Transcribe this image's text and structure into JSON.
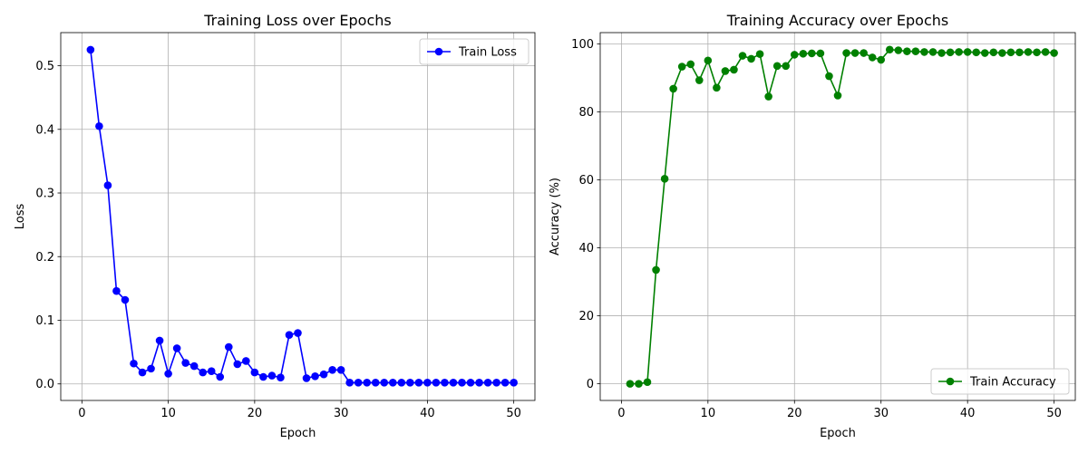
{
  "chart_data": [
    {
      "type": "line",
      "title": "Training Loss over Epochs",
      "xlabel": "Epoch",
      "ylabel": "Loss",
      "xlim": [
        -2.45,
        52.45
      ],
      "ylim": [
        -0.026,
        0.552
      ],
      "xticks": [
        0,
        10,
        20,
        30,
        40,
        50
      ],
      "yticks": [
        0.0,
        0.1,
        0.2,
        0.3,
        0.4,
        0.5
      ],
      "ytick_labels": [
        "0.0",
        "0.1",
        "0.2",
        "0.3",
        "0.4",
        "0.5"
      ],
      "grid": true,
      "legend_placement": "upper right",
      "series": [
        {
          "name": "Train Loss",
          "color": "#0000ff",
          "marker": "circle",
          "x": [
            1,
            2,
            3,
            4,
            5,
            6,
            7,
            8,
            9,
            10,
            11,
            12,
            13,
            14,
            15,
            16,
            17,
            18,
            19,
            20,
            21,
            22,
            23,
            24,
            25,
            26,
            27,
            28,
            29,
            30,
            31,
            32,
            33,
            34,
            35,
            36,
            37,
            38,
            39,
            40,
            41,
            42,
            43,
            44,
            45,
            46,
            47,
            48,
            49,
            50
          ],
          "values": [
            0.525,
            0.405,
            0.312,
            0.146,
            0.132,
            0.032,
            0.018,
            0.024,
            0.068,
            0.016,
            0.056,
            0.033,
            0.028,
            0.018,
            0.02,
            0.011,
            0.058,
            0.031,
            0.036,
            0.018,
            0.011,
            0.013,
            0.01,
            0.077,
            0.08,
            0.009,
            0.012,
            0.015,
            0.022,
            0.022,
            0.002,
            0.002,
            0.002,
            0.002,
            0.002,
            0.002,
            0.002,
            0.002,
            0.002,
            0.002,
            0.002,
            0.002,
            0.002,
            0.002,
            0.002,
            0.002,
            0.002,
            0.002,
            0.002,
            0.002
          ]
        }
      ]
    },
    {
      "type": "line",
      "title": "Training Accuracy over Epochs",
      "xlabel": "Epoch",
      "ylabel": "Accuracy (%)",
      "xlim": [
        -2.45,
        52.45
      ],
      "ylim": [
        -4.9,
        103.3
      ],
      "xticks": [
        0,
        10,
        20,
        30,
        40,
        50
      ],
      "yticks": [
        0,
        20,
        40,
        60,
        80,
        100
      ],
      "ytick_labels": [
        "0",
        "20",
        "40",
        "60",
        "80",
        "100"
      ],
      "grid": true,
      "legend_placement": "lower right",
      "series": [
        {
          "name": "Train Accuracy",
          "color": "#008000",
          "marker": "circle",
          "x": [
            1,
            2,
            3,
            4,
            5,
            6,
            7,
            8,
            9,
            10,
            11,
            12,
            13,
            14,
            15,
            16,
            17,
            18,
            19,
            20,
            21,
            22,
            23,
            24,
            25,
            26,
            27,
            28,
            29,
            30,
            31,
            32,
            33,
            34,
            35,
            36,
            37,
            38,
            39,
            40,
            41,
            42,
            43,
            44,
            45,
            46,
            47,
            48,
            49,
            50
          ],
          "values": [
            0.0,
            0.0,
            0.5,
            33.5,
            60.3,
            86.8,
            93.3,
            94.0,
            89.3,
            95.1,
            87.1,
            92.0,
            92.4,
            96.5,
            95.6,
            97.0,
            84.5,
            93.5,
            93.5,
            96.8,
            97.1,
            97.2,
            97.2,
            90.5,
            84.8,
            97.3,
            97.3,
            97.3,
            96.0,
            95.3,
            98.3,
            98.1,
            97.8,
            97.8,
            97.6,
            97.6,
            97.3,
            97.5,
            97.6,
            97.6,
            97.5,
            97.3,
            97.5,
            97.3,
            97.5,
            97.5,
            97.6,
            97.5,
            97.6,
            97.3
          ]
        }
      ]
    }
  ]
}
